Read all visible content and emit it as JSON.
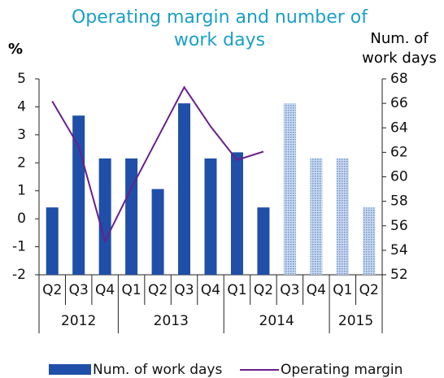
{
  "chart_data": {
    "type": "bar_line",
    "title": "Operating margin and number of work days",
    "y_label": "%",
    "y2_label": "Num. of work days",
    "categories": [
      "Q2",
      "Q3",
      "Q4",
      "Q1",
      "Q2",
      "Q3",
      "Q4",
      "Q1",
      "Q2",
      "Q3",
      "Q4",
      "Q1",
      "Q2"
    ],
    "year_groups": [
      {
        "label": "2012",
        "count": 3
      },
      {
        "label": "2013",
        "count": 4
      },
      {
        "label": "2014",
        "count": 4
      },
      {
        "label": "2015",
        "count": 2
      }
    ],
    "series": [
      {
        "name": "Num. of work days",
        "type": "bar",
        "axis": "y2",
        "color": "#1f4fa8",
        "values": [
          57.5,
          65,
          61.5,
          61.5,
          59,
          66,
          61.5,
          62,
          57.5,
          66,
          61.5,
          61.5,
          57.5
        ],
        "pattern": [
          "solid",
          "solid",
          "solid",
          "solid",
          "solid",
          "solid",
          "solid",
          "solid",
          "solid",
          "hatched",
          "hatched",
          "hatched",
          "hatched"
        ]
      },
      {
        "name": "Operating margin",
        "type": "line",
        "axis": "y",
        "color": "#6a1f8a",
        "values": [
          4.2,
          2.6,
          -0.8,
          1.1,
          2.9,
          4.7,
          3.3,
          2.1,
          2.4,
          null,
          null,
          null,
          null
        ]
      }
    ],
    "ylim": [
      -2,
      5
    ],
    "yticks": [
      -2,
      -1,
      0,
      1,
      2,
      3,
      4,
      5
    ],
    "y2lim": [
      52,
      68
    ],
    "y2ticks": [
      52,
      54,
      56,
      58,
      60,
      62,
      64,
      66,
      68
    ],
    "grid": false
  }
}
